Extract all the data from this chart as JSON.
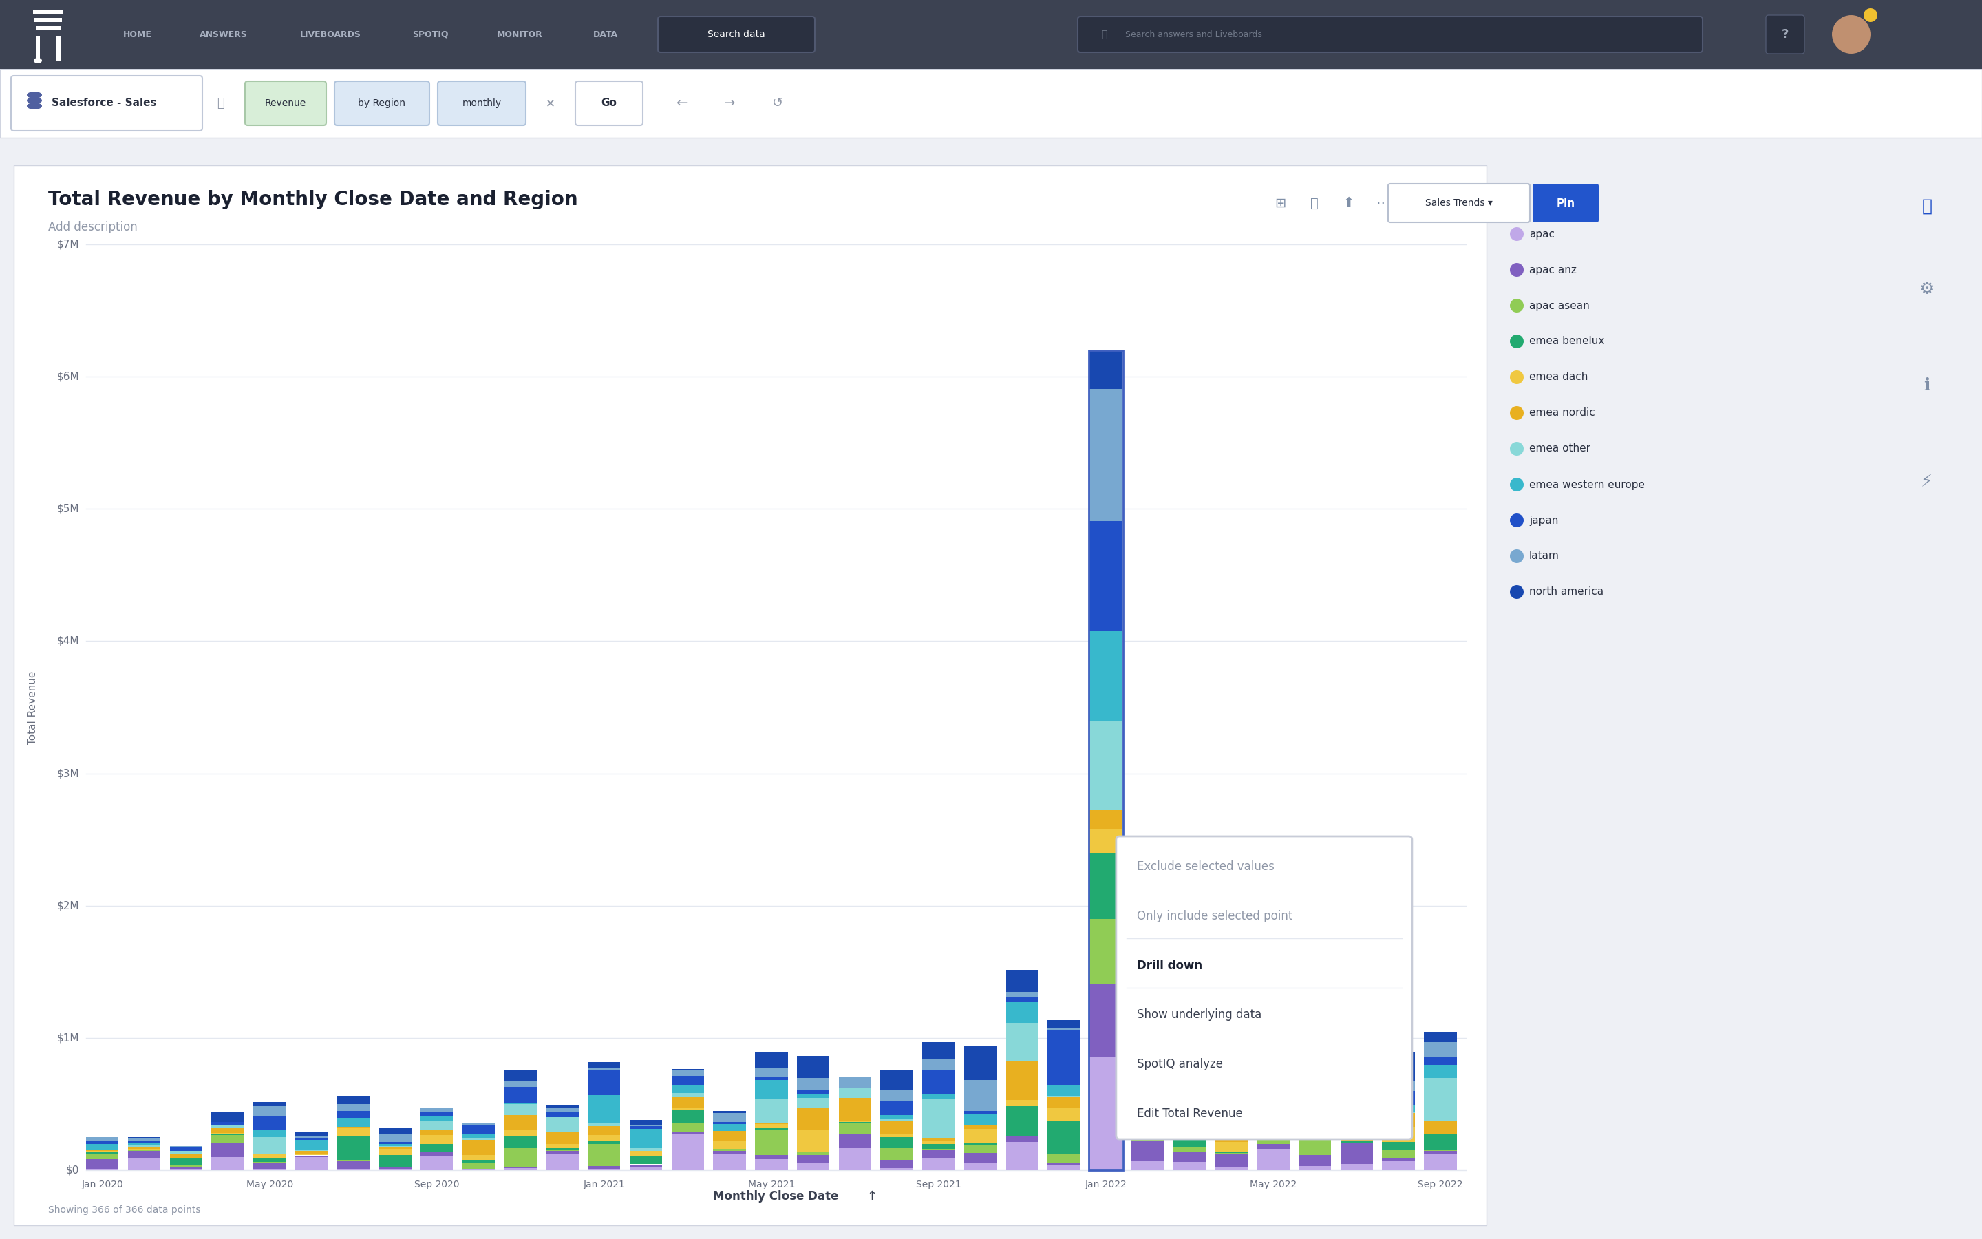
{
  "title": "Total Revenue by Monthly Close Date and Region",
  "subtitle": "Add description",
  "ylabel": "Total Revenue",
  "xlabel": "Monthly Close Date",
  "footer": "Showing 366 of 366 data points",
  "yticks": [
    "$0",
    "$1M",
    "$2M",
    "$3M",
    "$4M",
    "$5M",
    "$6M",
    "$7M"
  ],
  "xticks": [
    "Jan 2020",
    "May 2020",
    "Sep 2020",
    "Jan 2021",
    "May 2021",
    "Sep 2021",
    "Jan 2022",
    "May 2022",
    "Sep 2022"
  ],
  "legend_labels": [
    "apac",
    "apac anz",
    "apac asean",
    "emea benelux",
    "emea dach",
    "emea nordic",
    "emea other",
    "emea western europe",
    "japan",
    "latam",
    "north america"
  ],
  "legend_colors": [
    "#c0a8e8",
    "#8060c0",
    "#90cc55",
    "#22aa70",
    "#f0c840",
    "#e8b020",
    "#88d8d8",
    "#38b8cc",
    "#2050c8",
    "#78a8d0",
    "#1848b0"
  ],
  "region_colors": [
    "#c0a8e8",
    "#8060c0",
    "#90cc55",
    "#22aa70",
    "#f0c840",
    "#e8b020",
    "#88d8d8",
    "#38b8cc",
    "#2050c8",
    "#78a8d0",
    "#1848b0"
  ],
  "bg_color": "#eef0f5",
  "chart_bg": "#ffffff",
  "navbar_bg": "#3c4252",
  "nav_items": [
    "HOME",
    "ANSWERS",
    "LIVEBOARDS",
    "SPOTIQ",
    "MONITOR",
    "DATA"
  ],
  "datasource": "Salesforce - Sales",
  "search_tokens": [
    "Revenue",
    "by Region",
    "monthly"
  ],
  "token_colors": [
    "#d8eed8",
    "#dce8f5",
    "#dce8f5"
  ],
  "token_border_colors": [
    "#a8c8a8",
    "#b0c4dc",
    "#b0c4dc"
  ],
  "context_menu_items": [
    "Exclude selected values",
    "Only include selected point",
    "Drill down",
    "Show underlying data",
    "SpotIQ analyze",
    "Edit Total Revenue"
  ],
  "pin_btn_color": "#2255cc",
  "sales_trends_text": "Sales Trends"
}
